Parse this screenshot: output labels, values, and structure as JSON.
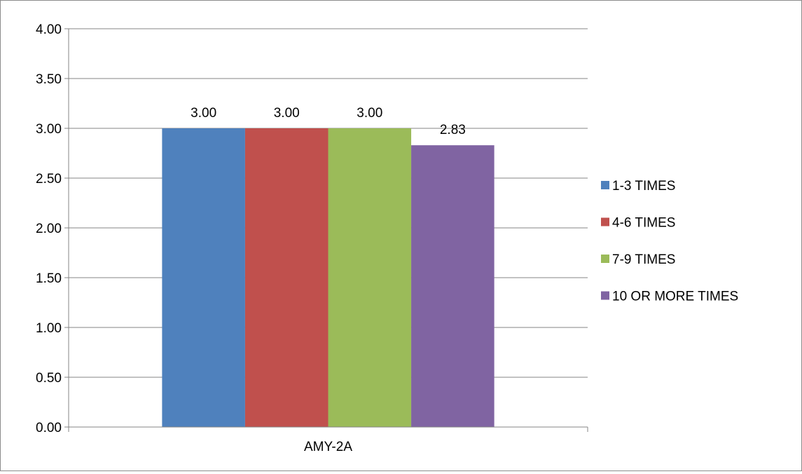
{
  "chart_data": {
    "type": "bar",
    "title": "",
    "xlabel": "",
    "ylabel": "",
    "categories": [
      "AMY-2A"
    ],
    "series": [
      {
        "name": "1-3 TIMES",
        "values": [
          3.0
        ],
        "color": "#4f81bd"
      },
      {
        "name": "4-6 TIMES",
        "values": [
          3.0
        ],
        "color": "#c0504d"
      },
      {
        "name": "7-9 TIMES",
        "values": [
          3.0
        ],
        "color": "#9bbb59"
      },
      {
        "name": "10 OR MORE TIMES",
        "values": [
          2.83
        ],
        "color": "#8064a2"
      }
    ],
    "ylim": [
      0,
      4
    ],
    "yticks": [
      "0.00",
      "0.50",
      "1.00",
      "1.50",
      "2.00",
      "2.50",
      "3.00",
      "3.50",
      "4.00"
    ],
    "data_labels": [
      "3.00",
      "3.00",
      "3.00",
      "2.83"
    ],
    "grid": true,
    "legend_position": "right"
  }
}
